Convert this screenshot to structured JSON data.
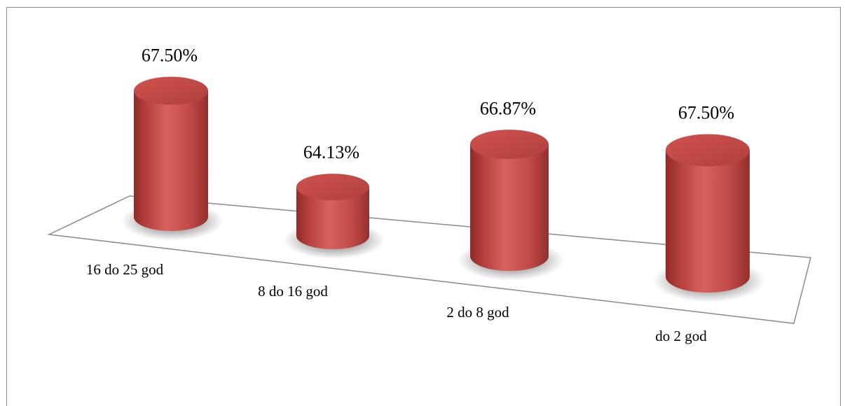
{
  "chart_data": {
    "type": "bar",
    "style": "3d-cylinder",
    "categories": [
      "16 do 25 god",
      "8 do 16 god",
      "2 do 8 god",
      "do 2 god"
    ],
    "values": [
      67.5,
      64.13,
      66.87,
      67.5
    ],
    "data_labels": [
      "67.50%",
      "64.13%",
      "66.87%",
      "67.50%"
    ],
    "unit": "%",
    "title": "",
    "xlabel": "",
    "ylabel": "",
    "grid": false,
    "legend": "none",
    "colors": {
      "bar": "#c0504d",
      "bar_dark": "#8f2a28",
      "bar_light": "#e07a76"
    }
  }
}
